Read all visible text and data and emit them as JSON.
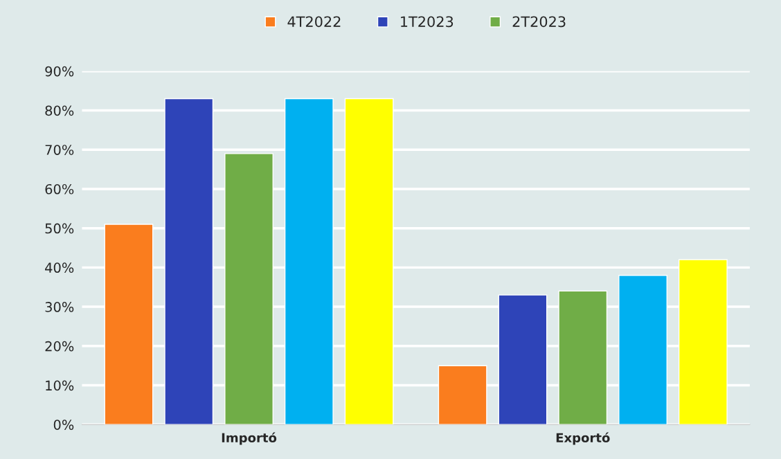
{
  "chart_data": {
    "type": "bar",
    "categories": [
      "Importó",
      "Exportó"
    ],
    "series": [
      {
        "name": "4T2022",
        "color": "#fa7d1e",
        "values": [
          51,
          15
        ]
      },
      {
        "name": "1T2023",
        "color": "#2e44b8",
        "values": [
          83,
          33
        ]
      },
      {
        "name": "2T2023",
        "color": "#70ad47",
        "values": [
          69,
          34
        ]
      },
      {
        "color": "#00b0f0",
        "values": [
          83,
          38
        ]
      },
      {
        "color": "#ffff00",
        "values": [
          83,
          42
        ]
      }
    ],
    "ylim": [
      0,
      90
    ],
    "yticks": [
      {
        "value": 0,
        "label": "0%"
      },
      {
        "value": 10,
        "label": "10%"
      },
      {
        "value": 20,
        "label": "20%"
      },
      {
        "value": 30,
        "label": "30%"
      },
      {
        "value": 40,
        "label": "40%"
      },
      {
        "value": 50,
        "label": "50%"
      },
      {
        "value": 60,
        "label": "60%"
      },
      {
        "value": 70,
        "label": "70%"
      },
      {
        "value": 80,
        "label": "80%"
      },
      {
        "value": 90,
        "label": "90%"
      }
    ],
    "grid": "y",
    "legend": "top"
  }
}
